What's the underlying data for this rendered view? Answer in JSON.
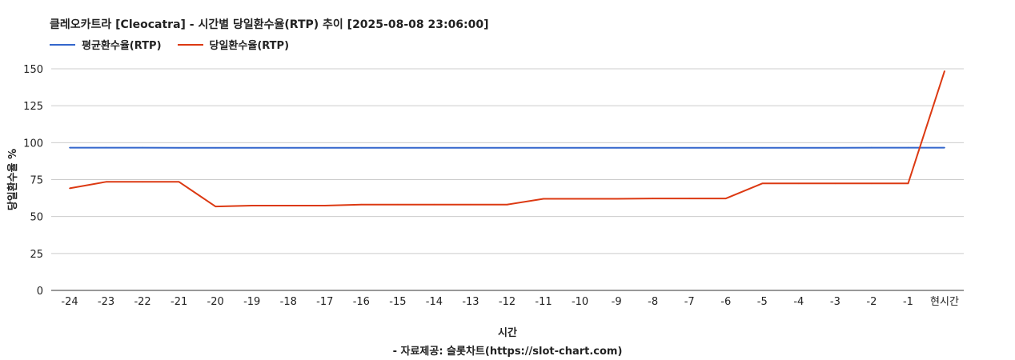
{
  "chart_data": {
    "type": "line",
    "title": "클레오카트라 [Cleocatra] - 시간별 당일환수율(RTP) 추이 [2025-08-08 23:06:00]",
    "xlabel": "시간",
    "ylabel": "당일환수율 %",
    "source": "- 자료제공: 슬롯차트(https://slot-chart.com)",
    "categories": [
      "-24",
      "-23",
      "-22",
      "-21",
      "-20",
      "-19",
      "-18",
      "-17",
      "-16",
      "-15",
      "-14",
      "-13",
      "-12",
      "-11",
      "-10",
      "-9",
      "-8",
      "-7",
      "-6",
      "-5",
      "-4",
      "-3",
      "-2",
      "-1",
      "현시간"
    ],
    "ylim": [
      0,
      150
    ],
    "yticks": [
      0,
      25,
      50,
      75,
      100,
      125,
      150
    ],
    "grid": true,
    "legend_position": "top-left",
    "series": [
      {
        "name": "평균환수율(RTP)",
        "color": "#3366cc",
        "values": [
          96.6,
          96.6,
          96.6,
          96.5,
          96.5,
          96.5,
          96.5,
          96.5,
          96.5,
          96.5,
          96.5,
          96.5,
          96.5,
          96.5,
          96.5,
          96.5,
          96.5,
          96.5,
          96.5,
          96.5,
          96.5,
          96.5,
          96.6,
          96.6,
          96.6
        ]
      },
      {
        "name": "당일환수율(RTP)",
        "color": "#dc3912",
        "values": [
          69.1,
          73.5,
          73.5,
          73.5,
          56.8,
          57.4,
          57.4,
          57.4,
          58.1,
          58.1,
          58.1,
          58.1,
          58.1,
          62.0,
          62.0,
          62.0,
          62.2,
          62.2,
          62.2,
          72.4,
          72.4,
          72.4,
          72.4,
          72.4,
          148.5
        ]
      }
    ]
  }
}
